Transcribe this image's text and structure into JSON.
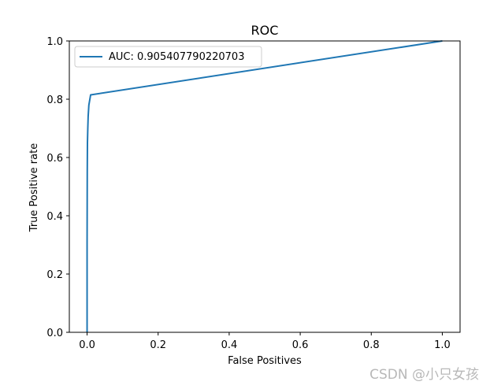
{
  "chart_data": {
    "type": "line",
    "title": "ROC",
    "xlabel": "False Positives",
    "ylabel": "True Positive rate",
    "xlim": [
      -0.05,
      1.05
    ],
    "ylim": [
      0.0,
      1.0
    ],
    "xticks": [
      "0.0",
      "0.2",
      "0.4",
      "0.6",
      "0.8",
      "1.0"
    ],
    "yticks": [
      "0.0",
      "0.2",
      "0.4",
      "0.6",
      "0.8",
      "1.0"
    ],
    "grid": false,
    "legend_position": "upper-left",
    "series": [
      {
        "name": "AUC: 0.905407790220703",
        "color": "#1f77b4",
        "x": [
          0.0,
          0.0,
          0.0005,
          0.001,
          0.002,
          0.003,
          0.005,
          0.01,
          1.0
        ],
        "y": [
          0.0,
          0.3,
          0.55,
          0.65,
          0.7,
          0.74,
          0.78,
          0.815,
          1.0
        ]
      }
    ]
  },
  "watermark": "CSDN @小只女孩"
}
